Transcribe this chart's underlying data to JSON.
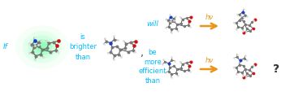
{
  "bg_color": "#ffffff",
  "cyan": "#00bfff",
  "arrow_color": "#e8951a",
  "text_if": "If",
  "text_is_brighter": "is\nbrighter\nthan",
  "text_will": "will",
  "text_be_more": "be\nmore\nefficient\nthan",
  "text_hv1": "hν",
  "text_hv2": "hν",
  "text_question": "?",
  "text_comma": ",",
  "glow_color": "#44ff88",
  "C": "#aaaaaa",
  "C_dark": "#777777",
  "N": "#1a3acc",
  "O": "#cc1111",
  "H": "#dddddd",
  "bond": "#555555",
  "bond_lw": 0.7
}
